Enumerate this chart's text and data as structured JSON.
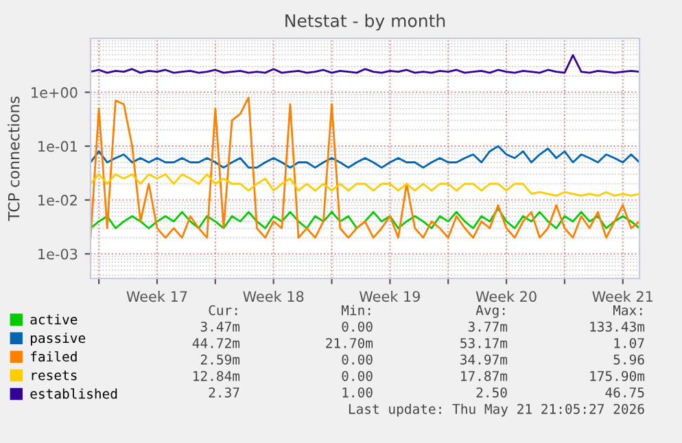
{
  "chart_data": {
    "type": "line",
    "title": "Netstat - by month",
    "ylabel": "TCP connections",
    "log": "y",
    "grid": true,
    "legend": "bottom",
    "line_style": "solid",
    "ylim": [
      0.00035,
      10
    ],
    "yticks": [
      {
        "value": 0.001,
        "label": "1e-03"
      },
      {
        "value": 0.01,
        "label": "1e-02"
      },
      {
        "value": 0.1,
        "label": "1e-01"
      },
      {
        "value": 1,
        "label": "1e+00"
      }
    ],
    "xlim": [
      "2026-04-19T12:00",
      "2026-05-22T12:00"
    ],
    "xticks": [
      {
        "value": "2026-04-20T00:00",
        "label": null
      },
      {
        "value": "2026-04-23T12:00",
        "label": "Week 17"
      },
      {
        "value": "2026-04-27T00:00",
        "label": null
      },
      {
        "value": "2026-04-30T12:00",
        "label": "Week 18"
      },
      {
        "value": "2026-05-04T00:00",
        "label": null
      },
      {
        "value": "2026-05-07T12:00",
        "label": "Week 19"
      },
      {
        "value": "2026-05-11T00:00",
        "label": null
      },
      {
        "value": "2026-05-14T12:00",
        "label": "Week 20"
      },
      {
        "value": "2026-05-18T00:00",
        "label": null
      },
      {
        "value": "2026-05-21T12:00",
        "label": "Week 21"
      }
    ],
    "x": [
      "2026-04-19T12:00",
      "2026-04-20T00:00",
      "2026-04-20T12:00",
      "2026-04-21T00:00",
      "2026-04-21T12:00",
      "2026-04-22T00:00",
      "2026-04-22T12:00",
      "2026-04-23T00:00",
      "2026-04-23T12:00",
      "2026-04-24T00:00",
      "2026-04-24T12:00",
      "2026-04-25T00:00",
      "2026-04-25T12:00",
      "2026-04-26T00:00",
      "2026-04-26T12:00",
      "2026-04-27T00:00",
      "2026-04-27T12:00",
      "2026-04-28T00:00",
      "2026-04-28T12:00",
      "2026-04-29T00:00",
      "2026-04-29T12:00",
      "2026-04-30T00:00",
      "2026-04-30T12:00",
      "2026-05-01T00:00",
      "2026-05-01T12:00",
      "2026-05-02T00:00",
      "2026-05-02T12:00",
      "2026-05-03T00:00",
      "2026-05-03T12:00",
      "2026-05-04T00:00",
      "2026-05-04T12:00",
      "2026-05-05T00:00",
      "2026-05-05T12:00",
      "2026-05-06T00:00",
      "2026-05-06T12:00",
      "2026-05-07T00:00",
      "2026-05-07T12:00",
      "2026-05-08T00:00",
      "2026-05-08T12:00",
      "2026-05-09T00:00",
      "2026-05-09T12:00",
      "2026-05-10T00:00",
      "2026-05-10T12:00",
      "2026-05-11T00:00",
      "2026-05-11T12:00",
      "2026-05-12T00:00",
      "2026-05-12T12:00",
      "2026-05-13T00:00",
      "2026-05-13T12:00",
      "2026-05-14T00:00",
      "2026-05-14T12:00",
      "2026-05-15T00:00",
      "2026-05-15T12:00",
      "2026-05-16T00:00",
      "2026-05-16T12:00",
      "2026-05-17T00:00",
      "2026-05-17T12:00",
      "2026-05-18T00:00",
      "2026-05-18T12:00",
      "2026-05-19T00:00",
      "2026-05-19T12:00",
      "2026-05-20T00:00",
      "2026-05-20T12:00",
      "2026-05-21T00:00",
      "2026-05-21T12:00",
      "2026-05-22T00:00",
      "2026-05-22T12:00"
    ],
    "series": [
      {
        "name": "active",
        "color": "#00cc00",
        "values": [
          0.003,
          0.004,
          0.005,
          0.003,
          0.004,
          0.005,
          0.004,
          0.003,
          0.004,
          0.005,
          0.004,
          0.006,
          0.004,
          0.003,
          0.005,
          0.004,
          0.003,
          0.005,
          0.004,
          0.006,
          0.004,
          0.003,
          0.005,
          0.004,
          0.006,
          0.004,
          0.003,
          0.005,
          0.004,
          0.006,
          0.004,
          0.005,
          0.003,
          0.004,
          0.006,
          0.004,
          0.005,
          0.003,
          0.004,
          0.005,
          0.004,
          0.003,
          0.005,
          0.004,
          0.006,
          0.004,
          0.003,
          0.005,
          0.004,
          0.007,
          0.004,
          0.003,
          0.005,
          0.004,
          0.006,
          0.004,
          0.003,
          0.005,
          0.004,
          0.006,
          0.004,
          0.005,
          0.003,
          0.004,
          0.005,
          0.004,
          0.003
        ]
      },
      {
        "name": "passive",
        "color": "#0066b3",
        "values": [
          0.05,
          0.08,
          0.05,
          0.06,
          0.07,
          0.05,
          0.06,
          0.05,
          0.06,
          0.05,
          0.05,
          0.06,
          0.05,
          0.05,
          0.06,
          0.05,
          0.04,
          0.05,
          0.06,
          0.04,
          0.04,
          0.05,
          0.06,
          0.05,
          0.04,
          0.05,
          0.05,
          0.04,
          0.05,
          0.06,
          0.05,
          0.04,
          0.05,
          0.06,
          0.05,
          0.04,
          0.05,
          0.06,
          0.05,
          0.05,
          0.04,
          0.05,
          0.06,
          0.05,
          0.05,
          0.06,
          0.07,
          0.05,
          0.08,
          0.1,
          0.07,
          0.06,
          0.08,
          0.05,
          0.07,
          0.09,
          0.06,
          0.08,
          0.05,
          0.07,
          0.06,
          0.05,
          0.07,
          0.06,
          0.05,
          0.07,
          0.05
        ]
      },
      {
        "name": "failed",
        "color": "#ff8000",
        "values": [
          0.002,
          0.5,
          0.003,
          0.7,
          0.6,
          0.1,
          0.004,
          0.02,
          0.003,
          0.002,
          0.003,
          0.002,
          0.005,
          0.003,
          0.002,
          0.5,
          0.003,
          0.3,
          0.4,
          0.8,
          0.003,
          0.002,
          0.004,
          0.003,
          0.6,
          0.002,
          0.003,
          0.002,
          0.004,
          0.6,
          0.003,
          0.002,
          0.003,
          0.004,
          0.002,
          0.003,
          0.005,
          0.002,
          0.02,
          0.003,
          0.002,
          0.004,
          0.003,
          0.002,
          0.005,
          0.003,
          0.002,
          0.004,
          0.003,
          0.008,
          0.003,
          0.002,
          0.004,
          0.006,
          0.002,
          0.003,
          0.008,
          0.003,
          0.002,
          0.005,
          0.003,
          0.006,
          0.002,
          0.004,
          0.008,
          0.003,
          0.004
        ]
      },
      {
        "name": "resets",
        "color": "#ffcc00",
        "values": [
          0.02,
          0.03,
          0.02,
          0.03,
          0.025,
          0.03,
          0.02,
          0.03,
          0.025,
          0.03,
          0.02,
          0.03,
          0.025,
          0.02,
          0.03,
          0.02,
          0.025,
          0.02,
          0.02,
          0.015,
          0.02,
          0.025,
          0.015,
          0.02,
          0.025,
          0.015,
          0.02,
          0.015,
          0.02,
          0.015,
          0.02,
          0.015,
          0.02,
          0.02,
          0.015,
          0.02,
          0.02,
          0.015,
          0.02,
          0.015,
          0.02,
          0.015,
          0.02,
          0.02,
          0.015,
          0.02,
          0.02,
          0.015,
          0.02,
          0.02,
          0.015,
          0.02,
          0.02,
          0.013,
          0.014,
          0.013,
          0.012,
          0.014,
          0.013,
          0.012,
          0.013,
          0.012,
          0.014,
          0.012,
          0.013,
          0.012,
          0.013
        ]
      },
      {
        "name": "established",
        "color": "#330099",
        "values": [
          2.4,
          2.6,
          2.3,
          2.5,
          2.4,
          2.7,
          2.3,
          2.5,
          2.4,
          2.6,
          2.3,
          2.4,
          2.5,
          2.3,
          2.4,
          2.6,
          2.3,
          2.4,
          2.5,
          2.3,
          2.4,
          2.3,
          2.7,
          2.3,
          2.4,
          2.5,
          2.3,
          2.4,
          2.6,
          2.3,
          2.5,
          2.4,
          2.3,
          2.7,
          2.4,
          2.3,
          2.5,
          2.4,
          2.6,
          2.3,
          2.4,
          2.3,
          2.5,
          2.4,
          2.6,
          2.3,
          2.4,
          2.5,
          2.3,
          2.6,
          2.4,
          2.3,
          2.5,
          2.4,
          2.3,
          2.6,
          2.4,
          2.3,
          4.9,
          2.4,
          2.3,
          2.5,
          2.4,
          2.3,
          2.4,
          2.5,
          2.4
        ]
      }
    ],
    "annotations": [
      "Cur:",
      "Min:",
      "Avg:",
      "Max:",
      "3.47m",
      "0.00",
      "3.77m",
      "133.43m",
      "44.72m",
      "21.70m",
      "53.17m",
      "1.07",
      "2.59m",
      "0.00",
      "34.97m",
      "5.96",
      "12.84m",
      "0.00",
      "17.87m",
      "175.90m",
      "2.37",
      "1.00",
      "2.50",
      "46.75",
      "Last update: Thu May 21 21:05:27 2026"
    ]
  }
}
